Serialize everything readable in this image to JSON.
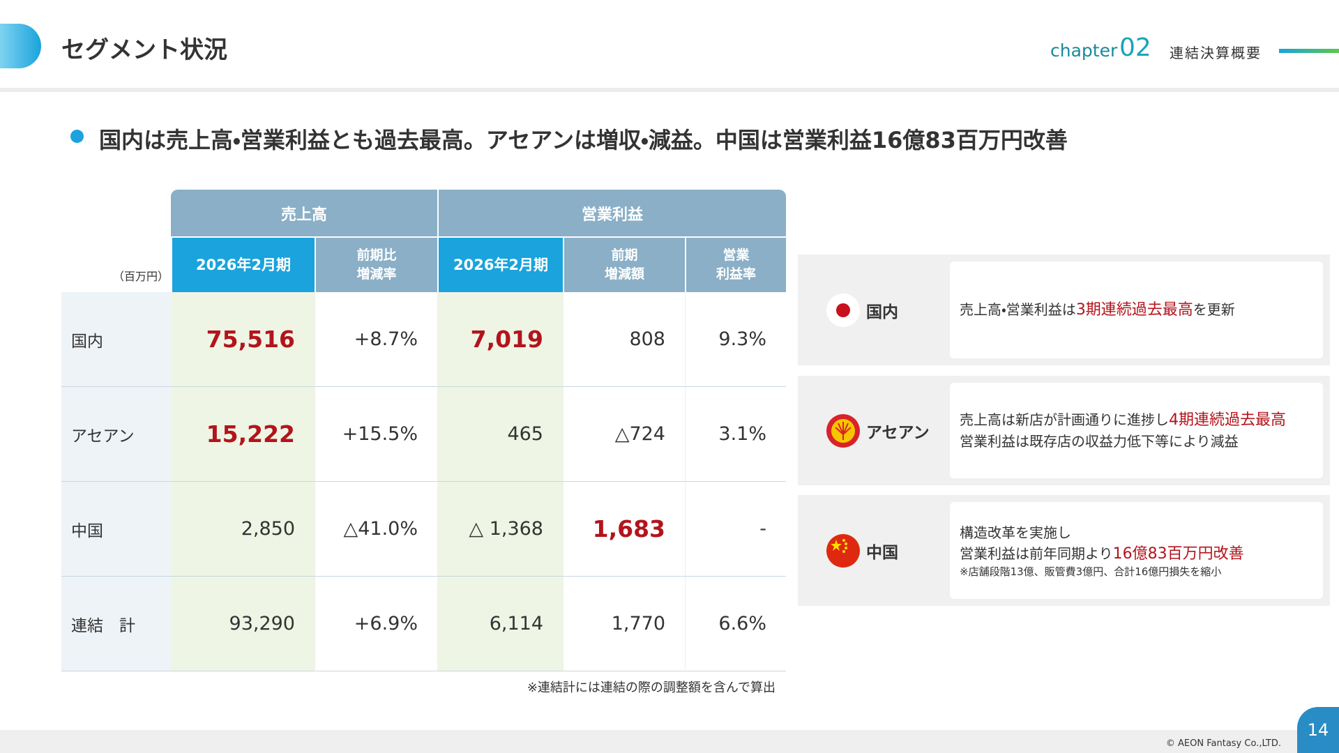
{
  "header": {
    "title": "セグメント状況",
    "chapter_label": "chapter",
    "chapter_number": "02",
    "section": "連結決算概要"
  },
  "headline": "国内は売上高・営業利益とも過去最高。アセアンは増収・減益。中国は営業利益16億83百万円改善",
  "table": {
    "unit": "（百万円）",
    "groups": [
      "売上高",
      "営業利益"
    ],
    "columns": [
      "2026年2月期",
      "前期比\n増減率",
      "2026年2月期",
      "前期\n増減額",
      "営業\n利益率"
    ],
    "rows": [
      {
        "label": "国内",
        "cells": [
          "75,516",
          "+8.7%",
          "7,019",
          "808",
          "9.3%"
        ],
        "emphasis": [
          true,
          false,
          true,
          false,
          false
        ]
      },
      {
        "label": "アセアン",
        "cells": [
          "15,222",
          "+15.5%",
          "465",
          "△724",
          "3.1%"
        ],
        "emphasis": [
          true,
          false,
          false,
          false,
          false
        ]
      },
      {
        "label": "中国",
        "cells": [
          "2,850",
          "△41.0%",
          "△ 1,368",
          "1,683",
          "-"
        ],
        "emphasis": [
          false,
          false,
          false,
          true,
          false
        ]
      },
      {
        "label": "連結　計",
        "cells": [
          "93,290",
          "+6.9%",
          "6,114",
          "1,770",
          "6.6%"
        ],
        "emphasis": [
          false,
          false,
          false,
          false,
          false
        ]
      }
    ],
    "footnote": "※連結計には連結の際の調整額を含んで算出"
  },
  "panels": [
    {
      "region": "国内",
      "lines": [
        [
          {
            "text": "売上高・営業利益は"
          },
          {
            "text": "3期連続過去最高",
            "emphasis": true
          },
          {
            "text": "を更新"
          }
        ]
      ]
    },
    {
      "region": "アセアン",
      "lines": [
        [
          {
            "text": "売上高は新店が計画通りに進捗し"
          },
          {
            "text": "4期連続過去最高",
            "emphasis": true
          }
        ],
        [
          {
            "text": "営業利益は既存店の収益力低下等により減益"
          }
        ]
      ]
    },
    {
      "region": "中国",
      "lines": [
        [
          {
            "text": "構造改革を実施し"
          }
        ],
        [
          {
            "text": "営業利益は前年同期より"
          },
          {
            "text": "16億83百万円改善",
            "emphasis": true
          }
        ]
      ],
      "note": "※店舗段階13億、販管費3億円、合計16億円損失を縮小"
    }
  ],
  "footer": {
    "copyright": "© AEON Fantasy Co.,LTD.",
    "page": "14"
  }
}
